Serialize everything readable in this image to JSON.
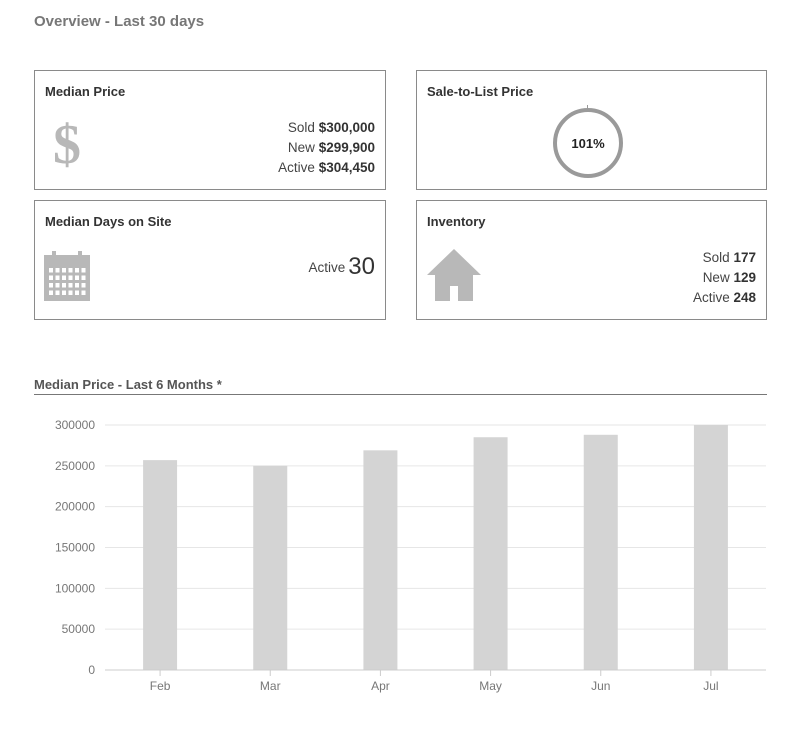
{
  "overview": {
    "title": "Overview - Last 30 days"
  },
  "median_price": {
    "title": "Median Price",
    "icon": "dollar-icon",
    "rows": [
      {
        "label": "Sold",
        "value": "$300,000"
      },
      {
        "label": "New",
        "value": "$299,900"
      },
      {
        "label": "Active",
        "value": "$304,450"
      }
    ]
  },
  "sale_to_list": {
    "title": "Sale-to-List Price",
    "value": "101%"
  },
  "median_days": {
    "title": "Median Days on Site",
    "icon": "calendar-icon",
    "label": "Active",
    "value": "30"
  },
  "inventory": {
    "title": "Inventory",
    "icon": "house-icon",
    "rows": [
      {
        "label": "Sold",
        "value": "177"
      },
      {
        "label": "New",
        "value": "129"
      },
      {
        "label": "Active",
        "value": "248"
      }
    ]
  },
  "chart_section": {
    "title": "Median Price - Last 6 Months *"
  },
  "colors": {
    "bar": "#d4d4d4",
    "grid": "#e6e6e6",
    "axis_text": "#777777",
    "icon": "#b8b8b8"
  },
  "chart_data": {
    "type": "bar",
    "categories": [
      "Feb",
      "Mar",
      "Apr",
      "May",
      "Jun",
      "Jul"
    ],
    "values": [
      257000,
      250000,
      269000,
      285000,
      288000,
      300000
    ],
    "ylim": [
      0,
      300000
    ],
    "yticks": [
      "0",
      "50000",
      "100000",
      "150000",
      "200000",
      "250000",
      "300000"
    ],
    "title": "",
    "xlabel": "",
    "ylabel": "",
    "grid": true,
    "legend": "none"
  }
}
